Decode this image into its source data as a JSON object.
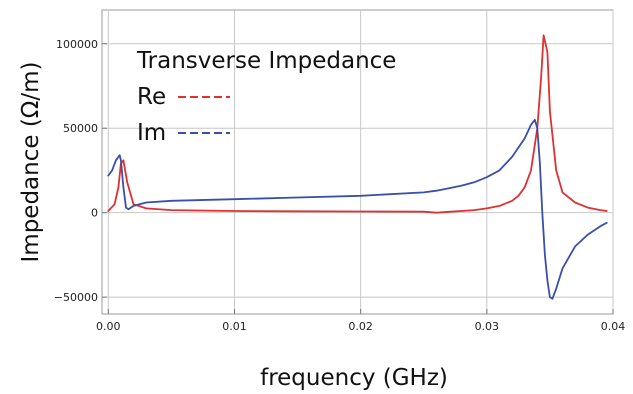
{
  "chart_data": {
    "type": "line",
    "title": "Transverse Impedance",
    "xlabel": "frequency (GHz)",
    "ylabel": "Impedance (Ω/m)",
    "xlim": [
      -0.0005,
      0.04
    ],
    "ylim": [
      -60000,
      120000
    ],
    "x_ticks": [
      0.0,
      0.01,
      0.02,
      0.03,
      0.04
    ],
    "x_tick_labels": [
      "0.00",
      "0.01",
      "0.02",
      "0.03",
      "0.04"
    ],
    "y_ticks": [
      -50000,
      0,
      50000,
      100000
    ],
    "y_tick_labels": [
      "−50000",
      "0",
      "50000",
      "100000"
    ],
    "grid": true,
    "legend_position": "top-left",
    "series": [
      {
        "name": "Re",
        "color": "#e03030",
        "x": [
          0.0,
          0.0005,
          0.0008,
          0.001,
          0.0012,
          0.0015,
          0.002,
          0.003,
          0.005,
          0.01,
          0.015,
          0.02,
          0.025,
          0.026,
          0.027,
          0.028,
          0.029,
          0.03,
          0.031,
          0.032,
          0.0325,
          0.033,
          0.0335,
          0.034,
          0.0343,
          0.0345,
          0.0348,
          0.035,
          0.0355,
          0.036,
          0.037,
          0.038,
          0.039,
          0.0395
        ],
        "y": [
          1000,
          5000,
          15000,
          29000,
          31000,
          18000,
          5000,
          2500,
          1500,
          1000,
          800,
          700,
          600,
          0,
          500,
          1000,
          1500,
          2500,
          4000,
          7000,
          10000,
          15000,
          25000,
          50000,
          80000,
          105000,
          95000,
          60000,
          25000,
          12000,
          6000,
          3000,
          1500,
          1000
        ]
      },
      {
        "name": "Im",
        "color": "#3a4fa8",
        "x": [
          0.0,
          0.0003,
          0.0006,
          0.0009,
          0.001,
          0.0012,
          0.0014,
          0.0016,
          0.002,
          0.003,
          0.005,
          0.01,
          0.015,
          0.02,
          0.025,
          0.026,
          0.027,
          0.028,
          0.029,
          0.03,
          0.031,
          0.032,
          0.033,
          0.0335,
          0.0338,
          0.034,
          0.0342,
          0.0344,
          0.0346,
          0.0348,
          0.035,
          0.0352,
          0.0355,
          0.036,
          0.037,
          0.038,
          0.039,
          0.0395
        ],
        "y": [
          22000,
          25000,
          31000,
          34000,
          31000,
          15000,
          3000,
          2000,
          4000,
          6000,
          7000,
          8000,
          9000,
          10000,
          12000,
          13000,
          14500,
          16000,
          18000,
          21000,
          25000,
          33000,
          44000,
          52000,
          55000,
          50000,
          30000,
          0,
          -25000,
          -40000,
          -50000,
          -51000,
          -45000,
          -33000,
          -20000,
          -13000,
          -8000,
          -6000
        ]
      }
    ]
  }
}
